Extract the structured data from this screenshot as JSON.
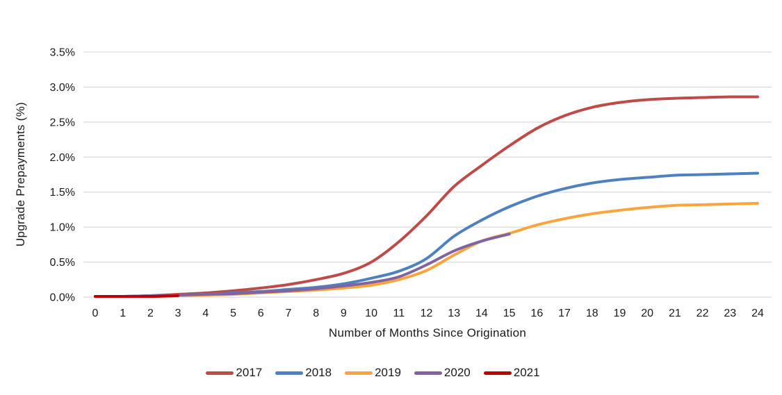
{
  "chart_data": {
    "type": "line",
    "title": "",
    "xlabel": "Number of Months Since Origination",
    "ylabel": "Upgrade Prepayments (%)",
    "x": [
      0,
      1,
      2,
      3,
      4,
      5,
      6,
      7,
      8,
      9,
      10,
      11,
      12,
      13,
      14,
      15,
      16,
      17,
      18,
      19,
      20,
      21,
      22,
      23,
      24
    ],
    "x_tick_labels": [
      "0",
      "1",
      "2",
      "3",
      "4",
      "5",
      "6",
      "7",
      "8",
      "9",
      "10",
      "11",
      "12",
      "13",
      "14",
      "15",
      "16",
      "17",
      "18",
      "19",
      "20",
      "21",
      "22",
      "23",
      "24"
    ],
    "y_ticks": [
      0.0,
      0.5,
      1.0,
      1.5,
      2.0,
      2.5,
      3.0,
      3.5
    ],
    "y_tick_labels": [
      "0.0%",
      "0.5%",
      "1.0%",
      "1.5%",
      "2.0%",
      "2.5%",
      "3.0%",
      "3.5%"
    ],
    "ylim": [
      0,
      3.5
    ],
    "xlim": [
      0,
      24
    ],
    "grid": "horizontal",
    "legend_position": "bottom",
    "colors": {
      "gridline": "#D9D9D9",
      "text": "#1a1a1a",
      "background": "#FFFFFF"
    },
    "series": [
      {
        "name": "2017",
        "color": "#BE4B48",
        "values": [
          0.01,
          0.01,
          0.02,
          0.04,
          0.06,
          0.09,
          0.13,
          0.18,
          0.25,
          0.34,
          0.5,
          0.79,
          1.16,
          1.58,
          1.88,
          2.16,
          2.41,
          2.59,
          2.71,
          2.78,
          2.82,
          2.84,
          2.85,
          2.86,
          2.86
        ]
      },
      {
        "name": "2018",
        "color": "#4E81BD",
        "values": [
          0.01,
          0.01,
          0.02,
          0.03,
          0.04,
          0.06,
          0.08,
          0.11,
          0.14,
          0.19,
          0.27,
          0.37,
          0.55,
          0.87,
          1.1,
          1.29,
          1.44,
          1.55,
          1.63,
          1.68,
          1.71,
          1.74,
          1.75,
          1.76,
          1.77
        ]
      },
      {
        "name": "2019",
        "color": "#F9A43C",
        "values": [
          0.01,
          0.01,
          0.01,
          0.02,
          0.03,
          0.04,
          0.06,
          0.08,
          0.1,
          0.13,
          0.17,
          0.25,
          0.38,
          0.6,
          0.8,
          0.91,
          1.03,
          1.12,
          1.19,
          1.24,
          1.28,
          1.31,
          1.32,
          1.33,
          1.34
        ]
      },
      {
        "name": "2020",
        "color": "#8064A2",
        "values": [
          0.01,
          0.01,
          0.02,
          0.03,
          0.04,
          0.05,
          0.07,
          0.09,
          0.12,
          0.16,
          0.21,
          0.29,
          0.46,
          0.66,
          0.8,
          0.9
        ]
      },
      {
        "name": "2021",
        "color": "#C00000",
        "values": [
          0.01,
          0.01,
          0.01,
          0.02
        ]
      }
    ]
  }
}
